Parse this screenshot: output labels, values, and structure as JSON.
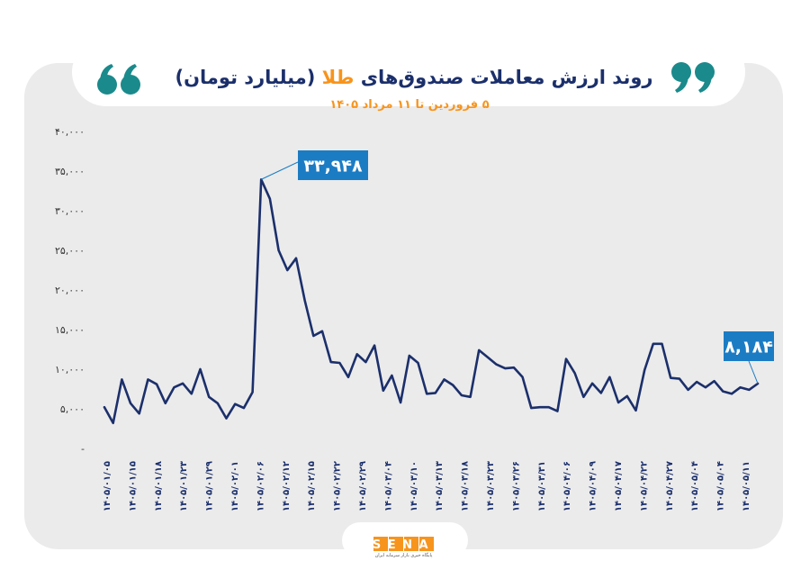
{
  "header": {
    "title_main": "روند ارزش معاملات صندوق‌های ",
    "title_highlight": "طلا",
    "title_unit": " (میلیارد تومان)",
    "subtitle": "۵ فروردین تا ۱۱ مرداد ۱۴۰۵",
    "quote_icon": "double-quote-icon"
  },
  "logo": {
    "name": "SENA",
    "tagline": "پایگاه خبری بازار سرمایه ایران"
  },
  "colors": {
    "line": "#1b2f6b",
    "accent": "#f7941d",
    "callout": "#1b7cc4",
    "quote": "#1a8a8c",
    "panel": "#ebebeb",
    "title": "#1b2f6b"
  },
  "chart_data": {
    "type": "line",
    "ylim": [
      0,
      40000
    ],
    "yticks": [
      {
        "value": 0,
        "label": "-"
      },
      {
        "value": 5000,
        "label": "۵,۰۰۰"
      },
      {
        "value": 10000,
        "label": "۱۰,۰۰۰"
      },
      {
        "value": 15000,
        "label": "۱۵,۰۰۰"
      },
      {
        "value": 20000,
        "label": "۲۰,۰۰۰"
      },
      {
        "value": 25000,
        "label": "۲۵,۰۰۰"
      },
      {
        "value": 30000,
        "label": "۳۰,۰۰۰"
      },
      {
        "value": 35000,
        "label": "۳۵,۰۰۰"
      },
      {
        "value": 40000,
        "label": "۴۰,۰۰۰"
      }
    ],
    "xtick_labels": [
      "۱۴۰۵/۰۱/۰۵",
      "۱۴۰۵/۰۱/۱۵",
      "۱۴۰۵/۰۱/۱۸",
      "۱۴۰۵/۰۱/۲۳",
      "۱۴۰۵/۰۱/۲۹",
      "۱۴۰۵/۰۲/۰۱",
      "۱۴۰۵/۰۲/۰۶",
      "۱۴۰۵/۰۲/۱۲",
      "۱۴۰۵/۰۲/۱۵",
      "۱۴۰۵/۰۲/۲۲",
      "۱۴۰۵/۰۲/۲۹",
      "۱۴۰۵/۰۳/۰۴",
      "۱۴۰۵/۰۳/۱۰",
      "۱۴۰۵/۰۳/۱۳",
      "۱۴۰۵/۰۳/۱۸",
      "۱۴۰۵/۰۳/۲۳",
      "۱۴۰۵/۰۳/۲۶",
      "۱۴۰۵/۰۳/۳۱",
      "۱۴۰۵/۰۴/۰۶",
      "۱۴۰۵/۰۴/۰۹",
      "۱۴۰۵/۰۴/۱۷",
      "۱۴۰۵/۰۴/۲۲",
      "۱۴۰۵/۰۴/۲۷",
      "۱۴۰۵/۰۵/۰۴",
      "۱۴۰۵/۰۵/۰۴",
      "۱۴۰۵/۰۵/۱۱"
    ],
    "values": [
      5200,
      3200,
      8700,
      5700,
      4400,
      8700,
      8100,
      5700,
      7700,
      8200,
      6900,
      10000,
      6500,
      5700,
      3800,
      5600,
      5100,
      7100,
      33948,
      31500,
      25000,
      22500,
      24000,
      18700,
      14200,
      14800,
      10900,
      10800,
      9000,
      11900,
      10900,
      13000,
      7300,
      9200,
      5800,
      11700,
      10800,
      6900,
      7000,
      8700,
      8000,
      6700,
      6500,
      12400,
      11500,
      10600,
      10100,
      10200,
      9000,
      5100,
      5200,
      5200,
      4700,
      11300,
      9500,
      6500,
      8200,
      7000,
      9000,
      5800,
      6600,
      4800,
      9900,
      13200,
      13200,
      8900,
      8800,
      7400,
      8400,
      7700,
      8500,
      7200,
      6900,
      7700,
      7400,
      8184
    ],
    "annotations": [
      {
        "index": 18,
        "value": 33948,
        "label": "۳۳,۹۴۸"
      },
      {
        "index": 75,
        "value": 8184,
        "label": "۸,۱۸۴"
      }
    ],
    "grid": false,
    "legend": "none"
  }
}
